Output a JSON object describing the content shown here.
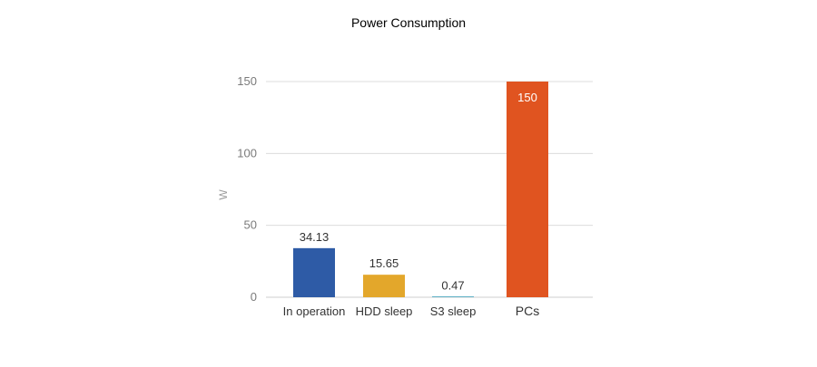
{
  "chart_data": {
    "type": "bar",
    "title": "Power Consumption",
    "xlabel": "",
    "ylabel": "W",
    "categories": [
      "In operation",
      "HDD sleep",
      "S3 sleep",
      "PCs"
    ],
    "values": [
      34.13,
      15.65,
      0.47,
      150
    ],
    "data_labels": [
      "34.13",
      "15.65",
      "0.47",
      "150"
    ],
    "bar_colors": [
      "#2E5BA6",
      "#E3A72B",
      "#2B98B4",
      "#E05420"
    ],
    "data_label_position": [
      "above",
      "above",
      "above",
      "inside-top"
    ],
    "ylim": [
      0,
      150
    ],
    "yticks": [
      0,
      50,
      100,
      150
    ],
    "grid": true,
    "legend": "none"
  }
}
